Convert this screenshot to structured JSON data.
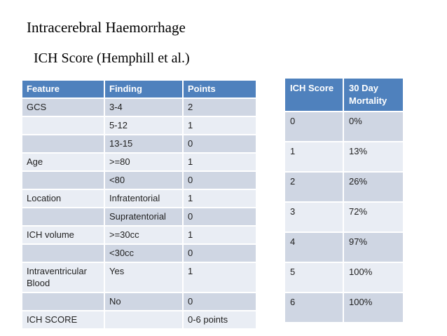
{
  "slide": {
    "title": "Intracerebral Haemorrhage",
    "subtitle": "ICH Score (Hemphill et al.)"
  },
  "colors": {
    "header_bg": "#4f81bd",
    "row_dark": "#cfd6e3",
    "row_light": "#e9edf4",
    "header_text": "#ffffff",
    "cell_text": "#1f1f1f",
    "background": "#ffffff"
  },
  "score_table": {
    "headers": [
      "Feature",
      "Finding",
      "Points"
    ],
    "rows": [
      [
        "GCS",
        "3-4",
        "2"
      ],
      [
        "",
        "5-12",
        "1"
      ],
      [
        "",
        "13-15",
        "0"
      ],
      [
        "Age",
        ">=80",
        "1"
      ],
      [
        "",
        "<80",
        "0"
      ],
      [
        "Location",
        "Infratentorial",
        "1"
      ],
      [
        "",
        "Supratentorial",
        "0"
      ],
      [
        "ICH volume",
        ">=30cc",
        "1"
      ],
      [
        "",
        "<30cc",
        "0"
      ],
      [
        "Intraventricular Blood",
        "Yes",
        "1"
      ],
      [
        "",
        "No",
        "0"
      ],
      [
        "ICH SCORE",
        "",
        "0-6 points"
      ]
    ]
  },
  "mortality_table": {
    "headers": [
      "ICH Score",
      "30 Day Mortality"
    ],
    "rows": [
      [
        "0",
        "0%"
      ],
      [
        "1",
        "13%"
      ],
      [
        "2",
        "26%"
      ],
      [
        "3",
        "72%"
      ],
      [
        "4",
        "97%"
      ],
      [
        "5",
        "100%"
      ],
      [
        "6",
        "100%"
      ]
    ]
  }
}
